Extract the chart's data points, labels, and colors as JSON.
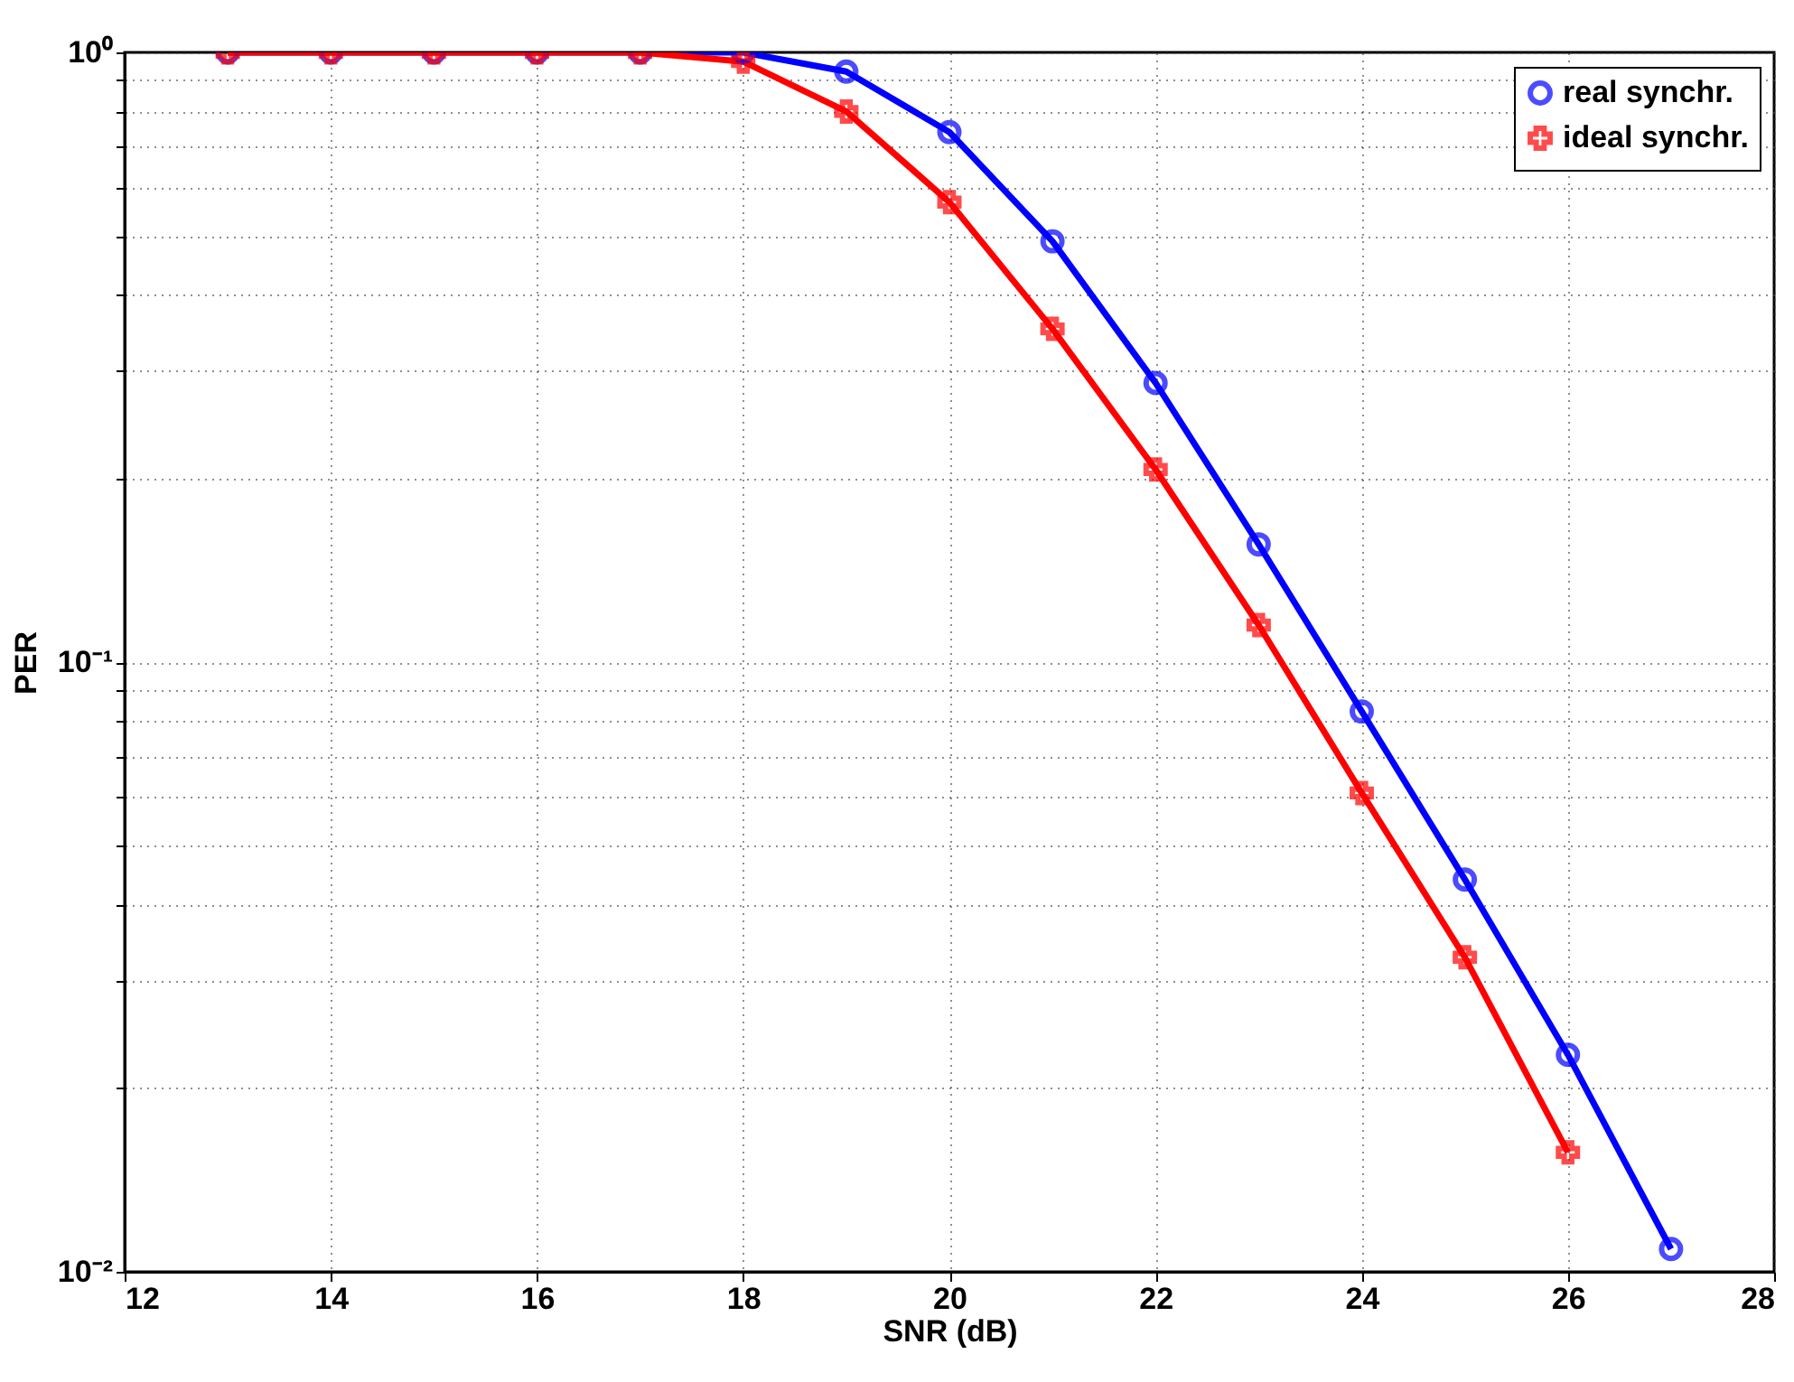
{
  "chart_data": {
    "type": "line",
    "xlabel": "SNR (dB)",
    "ylabel": "PER",
    "log": "y",
    "grid": true,
    "legend": "top right",
    "line_style": "solid",
    "xlim": [
      12,
      28
    ],
    "xticks": [
      12,
      14,
      16,
      18,
      20,
      22,
      24,
      26,
      28
    ],
    "ylim": [
      0.01,
      1
    ],
    "yticks": [
      {
        "value": 0.01,
        "label": "10⁻²"
      },
      {
        "value": 0.02,
        "label": null
      },
      {
        "value": 0.03,
        "label": null
      },
      {
        "value": 0.04,
        "label": null
      },
      {
        "value": 0.05,
        "label": null
      },
      {
        "value": 0.06,
        "label": null
      },
      {
        "value": 0.07,
        "label": null
      },
      {
        "value": 0.08,
        "label": null
      },
      {
        "value": 0.09,
        "label": null
      },
      {
        "value": 0.1,
        "label": "10⁻¹"
      },
      {
        "value": 0.2,
        "label": null
      },
      {
        "value": 0.3,
        "label": null
      },
      {
        "value": 0.4,
        "label": null
      },
      {
        "value": 0.5,
        "label": null
      },
      {
        "value": 0.6,
        "label": null
      },
      {
        "value": 0.7,
        "label": null
      },
      {
        "value": 0.8,
        "label": null
      },
      {
        "value": 0.9,
        "label": null
      },
      {
        "value": 1,
        "label": "10⁰"
      }
    ],
    "series": [
      {
        "name": "real synchr.",
        "color": "#0000ff",
        "marker": "circle",
        "x": [
          13,
          14,
          15,
          16,
          17,
          18,
          19,
          20,
          21,
          22,
          23,
          24,
          25,
          26,
          27
        ],
        "values": [
          1,
          1,
          1,
          1,
          1,
          1,
          0.93,
          0.74,
          0.49,
          0.287,
          0.156,
          0.083,
          0.044,
          0.0227,
          0.0109
        ]
      },
      {
        "name": "ideal synchr.",
        "color": "#ff0000",
        "marker": "cross",
        "x": [
          13,
          14,
          15,
          16,
          17,
          18,
          19,
          20,
          21,
          22,
          23,
          24,
          25,
          26
        ],
        "values": [
          1,
          1,
          1,
          1,
          1,
          0.966,
          0.8,
          0.568,
          0.352,
          0.207,
          0.115,
          0.061,
          0.0328,
          0.0157
        ]
      }
    ]
  }
}
